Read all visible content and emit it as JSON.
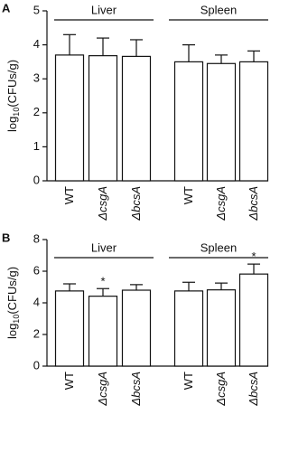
{
  "chart_data": [
    {
      "type": "bar",
      "panel": "A",
      "y_label": [
        "log",
        "10",
        "(CFUs/g)"
      ],
      "groups": [
        "Liver",
        "Spleen"
      ],
      "categories": [
        "WT",
        "ΔcsgA",
        "ΔbcsA",
        "WT",
        "ΔcsgA",
        "ΔbcsA"
      ],
      "values": [
        3.7,
        3.68,
        3.66,
        3.5,
        3.45,
        3.5
      ],
      "errors": [
        0.6,
        0.52,
        0.49,
        0.5,
        0.25,
        0.32
      ],
      "significance": [
        null,
        null,
        null,
        null,
        null,
        null
      ],
      "color": "#ffffff",
      "ylim": [
        0,
        5
      ],
      "yticks": [
        0,
        1,
        2,
        3,
        4,
        5
      ]
    },
    {
      "type": "bar",
      "panel": "B",
      "y_label": [
        "log",
        "10",
        "(CFUs/g)"
      ],
      "groups": [
        "Liver",
        "Spleen"
      ],
      "categories": [
        "WT",
        "ΔcsgA",
        "ΔbcsA",
        "WT",
        "ΔcsgA",
        "ΔbcsA"
      ],
      "values": [
        4.75,
        4.42,
        4.8,
        4.75,
        4.82,
        5.82
      ],
      "errors": [
        0.45,
        0.48,
        0.35,
        0.55,
        0.43,
        0.63
      ],
      "significance": [
        null,
        "*",
        null,
        null,
        null,
        "*"
      ],
      "color": "#ffffff",
      "ylim": [
        0,
        8
      ],
      "yticks": [
        0,
        2,
        4,
        6,
        8
      ]
    }
  ]
}
